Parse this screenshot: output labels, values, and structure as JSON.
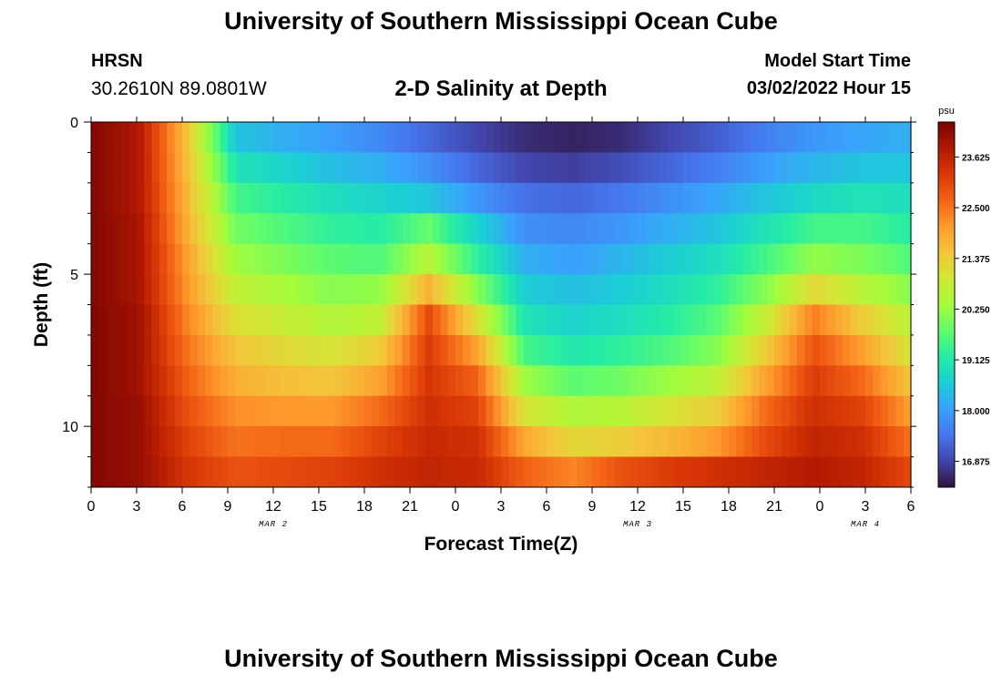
{
  "header": {
    "title": "University of Southern Mississippi Ocean Cube",
    "station": "HRSN",
    "coords": "30.2610N  89.0801W",
    "plot_title": "2-D Salinity at Depth",
    "model_label": "Model Start Time",
    "model_time": "03/02/2022 Hour 15"
  },
  "footer": {
    "title": "University of Southern Mississippi Ocean Cube"
  },
  "chart_data": {
    "type": "heatmap",
    "title": "2-D Salinity at Depth",
    "xlabel": "Forecast Time(Z)",
    "ylabel": "Depth (ft)",
    "x_ticks": [
      "0",
      "3",
      "6",
      "9",
      "12",
      "15",
      "18",
      "21",
      "0",
      "3",
      "6",
      "9",
      "12",
      "15",
      "18",
      "21",
      "0",
      "3",
      "6"
    ],
    "x_range_hours": [
      0,
      54
    ],
    "y_ticks": [
      "0",
      "5",
      "10"
    ],
    "y_range_ft": [
      0,
      12
    ],
    "date_labels": [
      {
        "label": "MAR 2",
        "hour": 12
      },
      {
        "label": "MAR 3",
        "hour": 36
      },
      {
        "label": "MAR 4",
        "hour": 51
      }
    ],
    "colorbar": {
      "unit": "psu",
      "ticks": [
        "23.625",
        "22.500",
        "21.375",
        "20.250",
        "19.125",
        "18.000",
        "16.875"
      ],
      "range": [
        16.3,
        24.4
      ],
      "colors": [
        "#30123b",
        "#4145ab",
        "#4675ed",
        "#39a2fc",
        "#1bcfd4",
        "#24eca6",
        "#61fc6c",
        "#a4fc3b",
        "#d1e834",
        "#f3c63a",
        "#fe9b2d",
        "#f36315",
        "#d93806",
        "#b11901",
        "#7a0402"
      ]
    },
    "depth_rows_ft": [
      0.5,
      1.5,
      2.5,
      3.5,
      4.5,
      5.5,
      6.5,
      7.5,
      8.5,
      9.5,
      10.5,
      11.5
    ],
    "salinity_psu": [
      [
        24.3,
        23.8,
        21.5,
        18.5,
        18.2,
        18.0,
        17.7,
        17.3,
        16.9,
        16.6,
        16.5,
        16.6,
        16.9,
        17.2,
        17.6,
        17.9,
        18.1,
        18.2
      ],
      [
        24.3,
        23.8,
        21.6,
        19.0,
        18.7,
        18.4,
        18.2,
        17.8,
        17.3,
        16.9,
        16.8,
        17.0,
        17.3,
        17.6,
        18.0,
        18.3,
        18.5,
        18.5
      ],
      [
        24.3,
        23.8,
        21.7,
        19.5,
        19.2,
        18.9,
        18.7,
        18.5,
        17.9,
        17.4,
        17.3,
        17.5,
        17.8,
        18.1,
        18.5,
        18.8,
        19.0,
        18.9
      ],
      [
        24.3,
        23.9,
        21.8,
        19.9,
        19.6,
        19.3,
        19.2,
        19.8,
        18.7,
        17.8,
        17.7,
        17.9,
        18.2,
        18.5,
        19.0,
        19.5,
        19.5,
        19.2
      ],
      [
        24.3,
        23.9,
        22.0,
        20.3,
        20.0,
        19.7,
        19.6,
        20.6,
        19.3,
        18.2,
        18.0,
        18.3,
        18.6,
        18.9,
        19.5,
        20.2,
        20.0,
        19.6
      ],
      [
        24.3,
        23.9,
        22.1,
        20.7,
        20.4,
        20.1,
        20.2,
        21.8,
        20.1,
        18.6,
        18.4,
        18.6,
        18.9,
        19.3,
        20.1,
        21.2,
        20.6,
        20.1
      ],
      [
        24.3,
        24.0,
        22.3,
        21.1,
        20.8,
        20.5,
        20.7,
        23.0,
        21.1,
        19.0,
        18.7,
        18.9,
        19.2,
        19.7,
        20.8,
        22.4,
        21.4,
        20.6
      ],
      [
        24.3,
        24.0,
        22.5,
        21.5,
        21.2,
        21.0,
        21.4,
        23.2,
        22.0,
        19.5,
        19.1,
        19.3,
        19.6,
        20.1,
        21.4,
        22.9,
        22.0,
        21.0
      ],
      [
        24.3,
        24.0,
        22.7,
        21.8,
        21.6,
        21.5,
        22.0,
        23.3,
        22.7,
        20.3,
        19.7,
        19.9,
        20.3,
        20.7,
        22.0,
        23.2,
        22.6,
        21.5
      ],
      [
        24.3,
        24.1,
        22.9,
        22.2,
        22.1,
        22.1,
        22.6,
        23.4,
        23.1,
        21.0,
        20.5,
        20.6,
        21.0,
        21.4,
        22.6,
        23.4,
        23.1,
        22.0
      ],
      [
        24.3,
        24.1,
        23.1,
        22.5,
        22.6,
        22.6,
        23.1,
        23.5,
        23.4,
        21.9,
        21.2,
        21.4,
        21.7,
        22.1,
        23.0,
        23.6,
        23.4,
        22.5
      ],
      [
        24.3,
        24.1,
        23.3,
        22.9,
        23.0,
        23.1,
        23.4,
        23.6,
        23.5,
        22.7,
        22.3,
        22.9,
        23.2,
        23.4,
        23.6,
        23.8,
        23.6,
        23.0
      ]
    ]
  }
}
